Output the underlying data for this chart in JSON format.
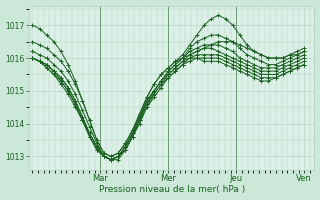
{
  "background_color": "#cce8d8",
  "plot_bg_color": "#ddf0e8",
  "grid_color": "#aacfbc",
  "line_color": "#1a6020",
  "marker_color": "#1a6020",
  "xlabel": "Pression niveau de la mer( hPa )",
  "xlabel_color": "#1a6020",
  "tick_color": "#1a6020",
  "ylim": [
    1012.6,
    1017.6
  ],
  "yticks": [
    1013,
    1014,
    1015,
    1016,
    1017
  ],
  "xday_labels": [
    "Mar",
    "Mer",
    "Jeu",
    "Ven"
  ],
  "figsize": [
    3.2,
    2.0
  ],
  "dpi": 100,
  "series": [
    [
      1017.0,
      1016.9,
      1016.7,
      1016.5,
      1016.2,
      1015.8,
      1015.3,
      1014.7,
      1014.1,
      1013.5,
      1013.1,
      1013.0,
      1013.1,
      1013.4,
      1013.8,
      1014.3,
      1014.8,
      1015.2,
      1015.5,
      1015.7,
      1015.9,
      1016.0,
      1016.1,
      1016.2,
      1016.3,
      1016.4,
      1016.5,
      1016.5,
      1016.5,
      1016.4,
      1016.3,
      1016.2,
      1016.1,
      1016.0,
      1016.0,
      1016.0,
      1016.1,
      1016.1,
      1016.2
    ],
    [
      1016.5,
      1016.4,
      1016.3,
      1016.1,
      1015.9,
      1015.6,
      1015.2,
      1014.7,
      1014.1,
      1013.5,
      1013.1,
      1013.0,
      1013.1,
      1013.4,
      1013.8,
      1014.3,
      1014.8,
      1015.2,
      1015.5,
      1015.7,
      1015.9,
      1016.1,
      1016.4,
      1016.7,
      1017.0,
      1017.2,
      1017.3,
      1017.2,
      1017.0,
      1016.7,
      1016.4,
      1016.2,
      1016.1,
      1016.0,
      1016.0,
      1016.0,
      1016.1,
      1016.2,
      1016.3
    ],
    [
      1016.2,
      1016.1,
      1016.0,
      1015.8,
      1015.6,
      1015.3,
      1014.9,
      1014.4,
      1013.9,
      1013.4,
      1013.0,
      1012.9,
      1013.0,
      1013.3,
      1013.7,
      1014.2,
      1014.7,
      1015.0,
      1015.3,
      1015.6,
      1015.8,
      1016.0,
      1016.3,
      1016.5,
      1016.6,
      1016.7,
      1016.7,
      1016.6,
      1016.5,
      1016.3,
      1016.1,
      1016.0,
      1015.9,
      1015.8,
      1015.8,
      1015.9,
      1016.0,
      1016.1,
      1016.2
    ],
    [
      1016.0,
      1015.9,
      1015.8,
      1015.6,
      1015.4,
      1015.1,
      1014.7,
      1014.2,
      1013.7,
      1013.3,
      1013.0,
      1012.9,
      1013.0,
      1013.3,
      1013.7,
      1014.2,
      1014.7,
      1015.0,
      1015.3,
      1015.6,
      1015.8,
      1016.0,
      1016.2,
      1016.3,
      1016.4,
      1016.4,
      1016.4,
      1016.3,
      1016.2,
      1016.0,
      1015.9,
      1015.8,
      1015.7,
      1015.7,
      1015.7,
      1015.8,
      1015.9,
      1016.0,
      1016.1
    ],
    [
      1016.0,
      1015.9,
      1015.8,
      1015.6,
      1015.4,
      1015.1,
      1014.7,
      1014.2,
      1013.7,
      1013.3,
      1013.0,
      1012.9,
      1013.0,
      1013.3,
      1013.7,
      1014.2,
      1014.6,
      1015.0,
      1015.3,
      1015.5,
      1015.7,
      1015.9,
      1016.1,
      1016.2,
      1016.3,
      1016.3,
      1016.2,
      1016.1,
      1016.0,
      1015.9,
      1015.8,
      1015.7,
      1015.6,
      1015.6,
      1015.6,
      1015.7,
      1015.8,
      1015.9,
      1016.0
    ],
    [
      1016.0,
      1015.9,
      1015.8,
      1015.6,
      1015.3,
      1015.0,
      1014.6,
      1014.1,
      1013.7,
      1013.3,
      1013.0,
      1012.9,
      1013.0,
      1013.2,
      1013.6,
      1014.1,
      1014.6,
      1014.9,
      1015.2,
      1015.5,
      1015.7,
      1015.9,
      1016.0,
      1016.1,
      1016.1,
      1016.1,
      1016.1,
      1016.0,
      1015.9,
      1015.8,
      1015.7,
      1015.6,
      1015.5,
      1015.5,
      1015.5,
      1015.6,
      1015.7,
      1015.8,
      1015.9
    ],
    [
      1016.0,
      1015.9,
      1015.7,
      1015.5,
      1015.3,
      1015.0,
      1014.6,
      1014.1,
      1013.6,
      1013.2,
      1013.0,
      1012.9,
      1013.0,
      1013.2,
      1013.6,
      1014.1,
      1014.5,
      1014.9,
      1015.2,
      1015.4,
      1015.6,
      1015.8,
      1016.0,
      1016.0,
      1016.0,
      1016.0,
      1016.0,
      1015.9,
      1015.8,
      1015.7,
      1015.6,
      1015.5,
      1015.4,
      1015.4,
      1015.4,
      1015.5,
      1015.6,
      1015.7,
      1015.8
    ],
    [
      1016.0,
      1015.9,
      1015.7,
      1015.5,
      1015.2,
      1014.9,
      1014.5,
      1014.1,
      1013.6,
      1013.2,
      1013.0,
      1012.9,
      1012.9,
      1013.2,
      1013.6,
      1014.0,
      1014.5,
      1014.8,
      1015.1,
      1015.4,
      1015.6,
      1015.8,
      1015.9,
      1016.0,
      1015.9,
      1015.9,
      1015.9,
      1015.8,
      1015.7,
      1015.6,
      1015.5,
      1015.4,
      1015.3,
      1015.3,
      1015.4,
      1015.5,
      1015.6,
      1015.7,
      1015.8
    ]
  ]
}
